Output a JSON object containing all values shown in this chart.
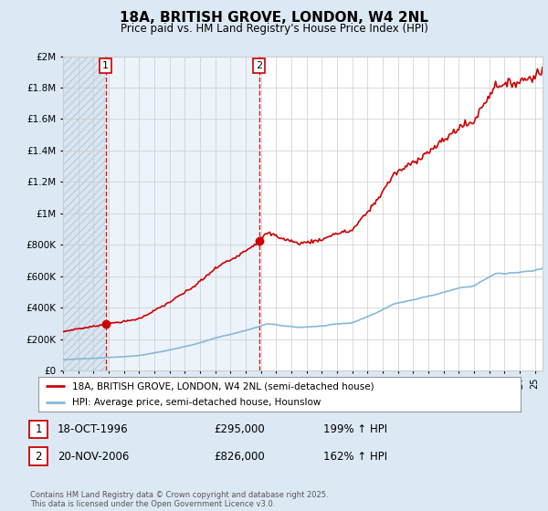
{
  "title": "18A, BRITISH GROVE, LONDON, W4 2NL",
  "subtitle": "Price paid vs. HM Land Registry's House Price Index (HPI)",
  "bg_color": "#dce9f5",
  "plot_bg_color": "#ffffff",
  "hatch_bg_color": "#ccdaeb",
  "mid_bg_color": "#e4eef8",
  "red_color": "#cc0000",
  "blue_color": "#85b8d8",
  "grid_color": "#cccccc",
  "purchase1_year": 1996.79,
  "purchase1_price": 295000,
  "purchase2_year": 2006.89,
  "purchase2_price": 826000,
  "purchase1_label": "1",
  "purchase2_label": "2",
  "legend_label_red": "18A, BRITISH GROVE, LONDON, W4 2NL (semi-detached house)",
  "legend_label_blue": "HPI: Average price, semi-detached house, Hounslow",
  "table_row1": [
    "1",
    "18-OCT-1996",
    "£295,000",
    "199% ↑ HPI"
  ],
  "table_row2": [
    "2",
    "20-NOV-2006",
    "£826,000",
    "162% ↑ HPI"
  ],
  "footer": "Contains HM Land Registry data © Crown copyright and database right 2025.\nThis data is licensed under the Open Government Licence v3.0.",
  "xmin": 1994,
  "xmax": 2025.5,
  "ymin": 0,
  "ymax": 2000000
}
